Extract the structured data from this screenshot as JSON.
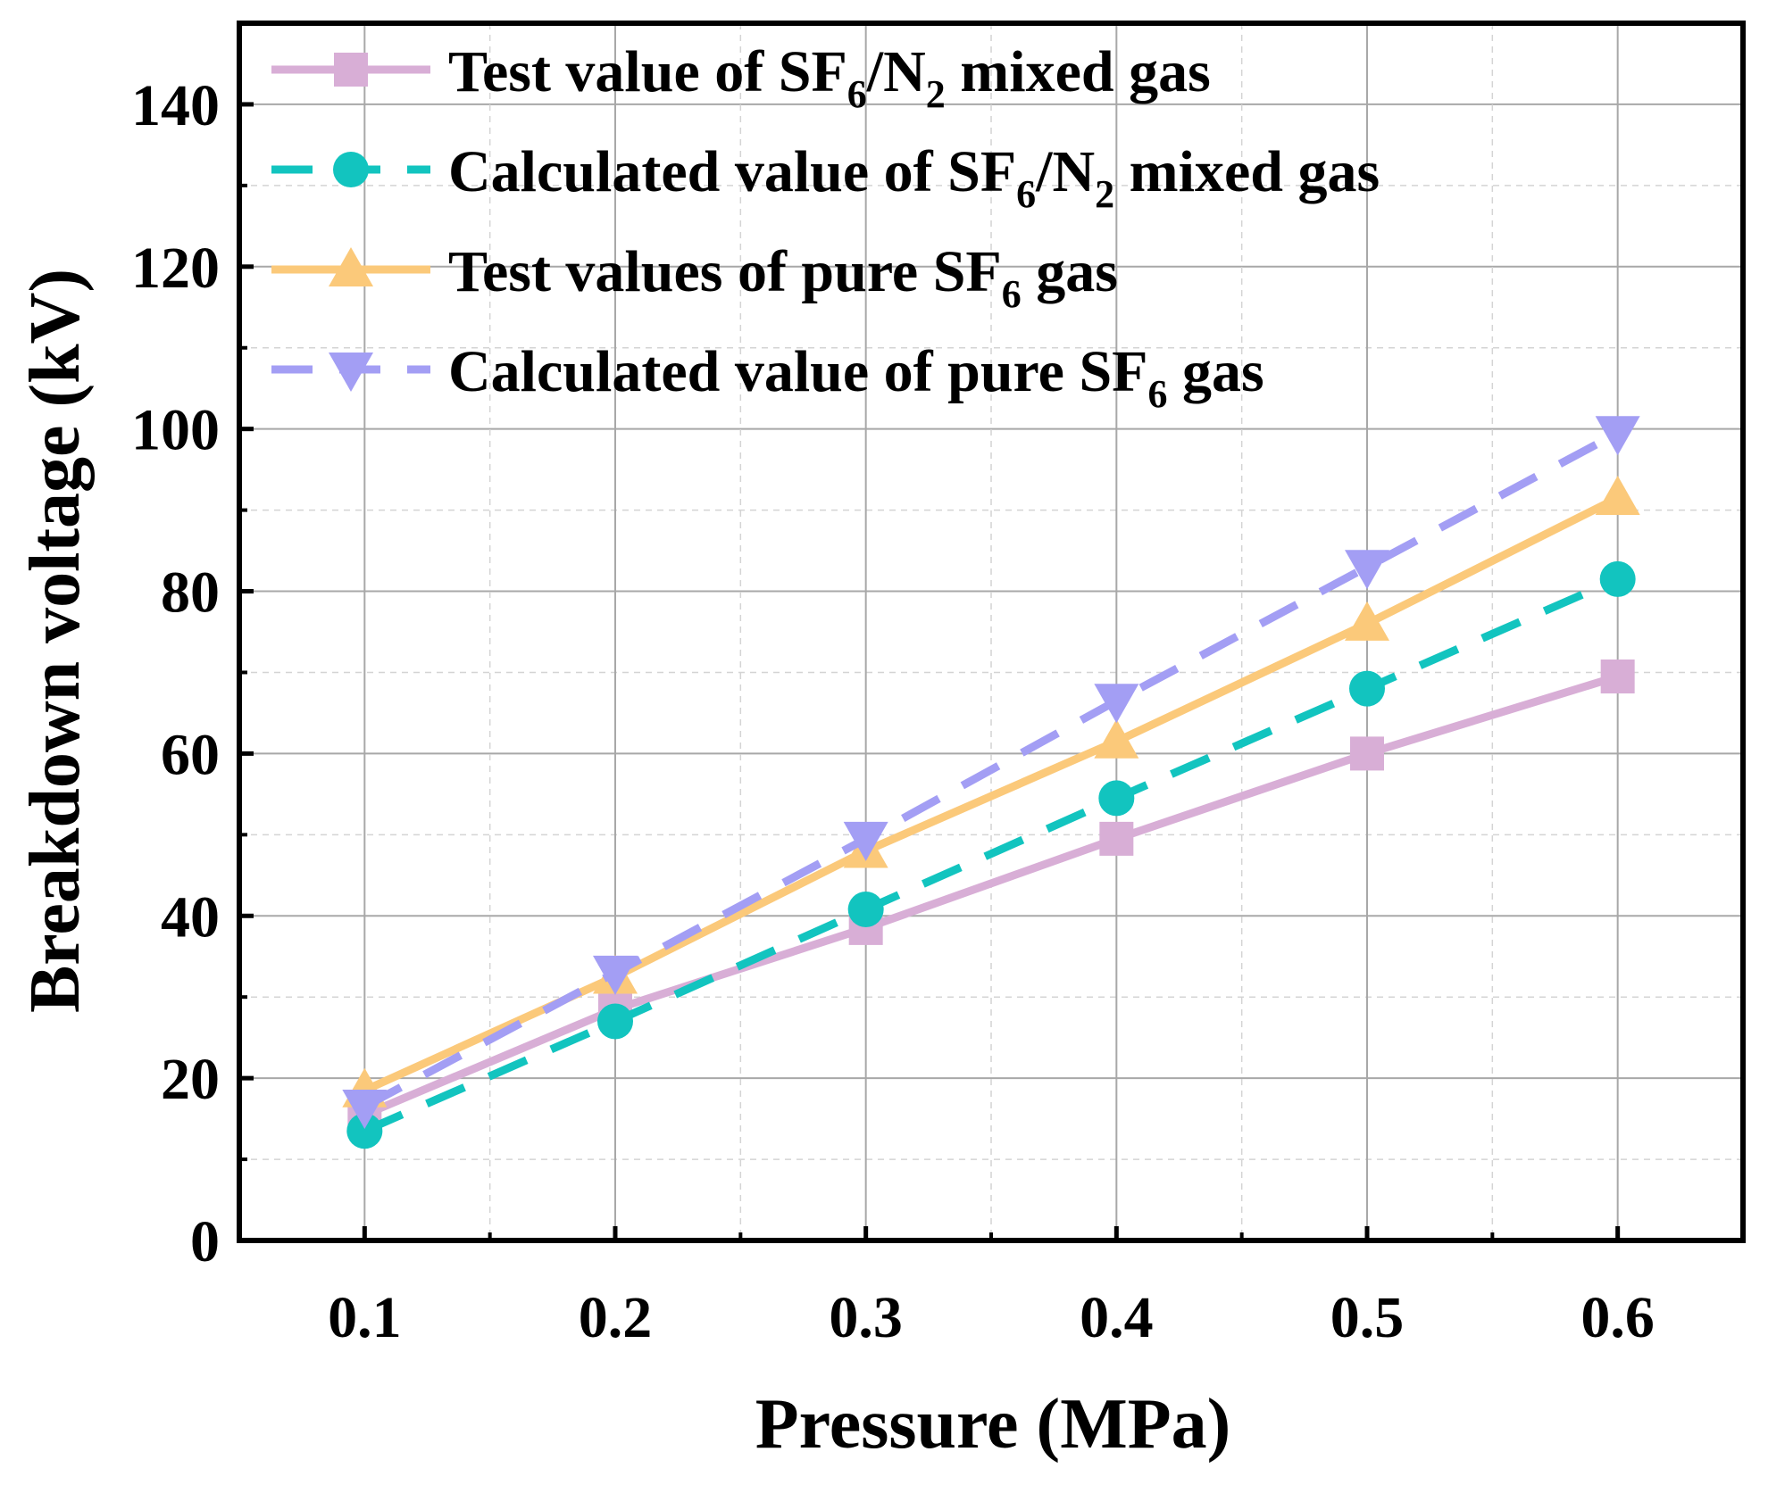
{
  "chart_data": {
    "type": "line",
    "title": "",
    "xlabel": "Pressure (MPa)",
    "ylabel": "Breakdown voltage (kV)",
    "x": [
      0.1,
      0.2,
      0.3,
      0.4,
      0.5,
      0.6
    ],
    "x_tick_labels": [
      "0.1",
      "0.2",
      "0.3",
      "0.4",
      "0.5",
      "0.6"
    ],
    "xlim": [
      0.05,
      0.65
    ],
    "y_ticks": [
      0,
      20,
      40,
      60,
      80,
      100,
      120,
      140
    ],
    "y_tick_labels": [
      "0",
      "20",
      "40",
      "60",
      "80",
      "100",
      "120",
      "140"
    ],
    "ylim": [
      0,
      150
    ],
    "grid": true,
    "legend_position": "top-left",
    "series": [
      {
        "id": "test-sf6n2",
        "legend": {
          "pre": "Test value of SF",
          "sub1": "6",
          "mid": "/N",
          "sub2": "2",
          "post": " mixed gas"
        },
        "values": [
          15.5,
          28.5,
          38.5,
          49.5,
          60.0,
          69.5
        ],
        "color": "#d8aed6",
        "marker": "square",
        "dashed": false
      },
      {
        "id": "calc-sf6n2",
        "legend": {
          "pre": "Calculated value of SF",
          "sub1": "6",
          "mid": "/N",
          "sub2": "2",
          "post": " mixed gas"
        },
        "values": [
          13.5,
          27.0,
          40.8,
          54.5,
          68.0,
          81.5
        ],
        "color": "#12c4bf",
        "marker": "circle",
        "dashed": true
      },
      {
        "id": "test-sf6",
        "legend": {
          "pre": "Test values of pure SF",
          "sub1": "6",
          "mid": "",
          "sub2": "",
          "post": " gas"
        },
        "values": [
          18.5,
          32.5,
          48.0,
          61.5,
          76.0,
          91.5
        ],
        "color": "#fbc97a",
        "marker": "triangle-up",
        "dashed": false
      },
      {
        "id": "calc-sf6",
        "legend": {
          "pre": "Calculated value of pure SF",
          "sub1": "6",
          "mid": "",
          "sub2": "",
          "post": " gas"
        },
        "values": [
          16.5,
          33.0,
          49.5,
          66.5,
          83.0,
          99.5
        ],
        "color": "#a39ef4",
        "marker": "triangle-down",
        "dashed": true
      }
    ]
  }
}
